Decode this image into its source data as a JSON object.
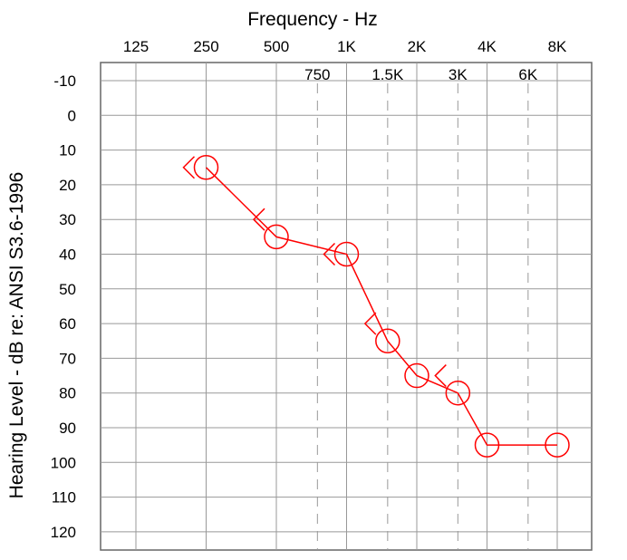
{
  "chart_data": {
    "type": "line",
    "title": "Frequency - Hz",
    "xlabel": "Frequency - Hz",
    "ylabel": "Hearing Level - dB  re: ANSI S3.6-1996",
    "x_scale": "log2",
    "x_octave_ticks": [
      {
        "freq": 125,
        "label": "125"
      },
      {
        "freq": 250,
        "label": "250"
      },
      {
        "freq": 500,
        "label": "500"
      },
      {
        "freq": 1000,
        "label": "1K"
      },
      {
        "freq": 2000,
        "label": "2K"
      },
      {
        "freq": 4000,
        "label": "4K"
      },
      {
        "freq": 8000,
        "label": "8K"
      }
    ],
    "x_interoctave_ticks": [
      {
        "freq": 750,
        "label": "750"
      },
      {
        "freq": 1500,
        "label": "1.5K"
      },
      {
        "freq": 3000,
        "label": "3K"
      },
      {
        "freq": 6000,
        "label": "6K"
      }
    ],
    "ylim": [
      -10,
      120
    ],
    "y_inverted": true,
    "y_ticks": [
      -10,
      0,
      10,
      20,
      30,
      40,
      50,
      60,
      70,
      80,
      90,
      100,
      110,
      120
    ],
    "grid": true,
    "colors": {
      "series": "#ff0000",
      "grid": "#999999",
      "frame": "#666666"
    },
    "series": [
      {
        "symbol": "circle",
        "connected": true,
        "points": [
          {
            "x": 250,
            "y": 15
          },
          {
            "x": 500,
            "y": 35
          },
          {
            "x": 1000,
            "y": 40
          },
          {
            "x": 1500,
            "y": 65
          },
          {
            "x": 2000,
            "y": 75
          },
          {
            "x": 3000,
            "y": 80
          },
          {
            "x": 4000,
            "y": 95
          },
          {
            "x": 8000,
            "y": 95
          }
        ]
      },
      {
        "symbol": "bracket-left",
        "connected": false,
        "points": [
          {
            "x": 250,
            "y": 15
          },
          {
            "x": 500,
            "y": 30
          },
          {
            "x": 1000,
            "y": 40
          },
          {
            "x": 1500,
            "y": 60
          },
          {
            "x": 3000,
            "y": 75
          }
        ]
      }
    ]
  }
}
